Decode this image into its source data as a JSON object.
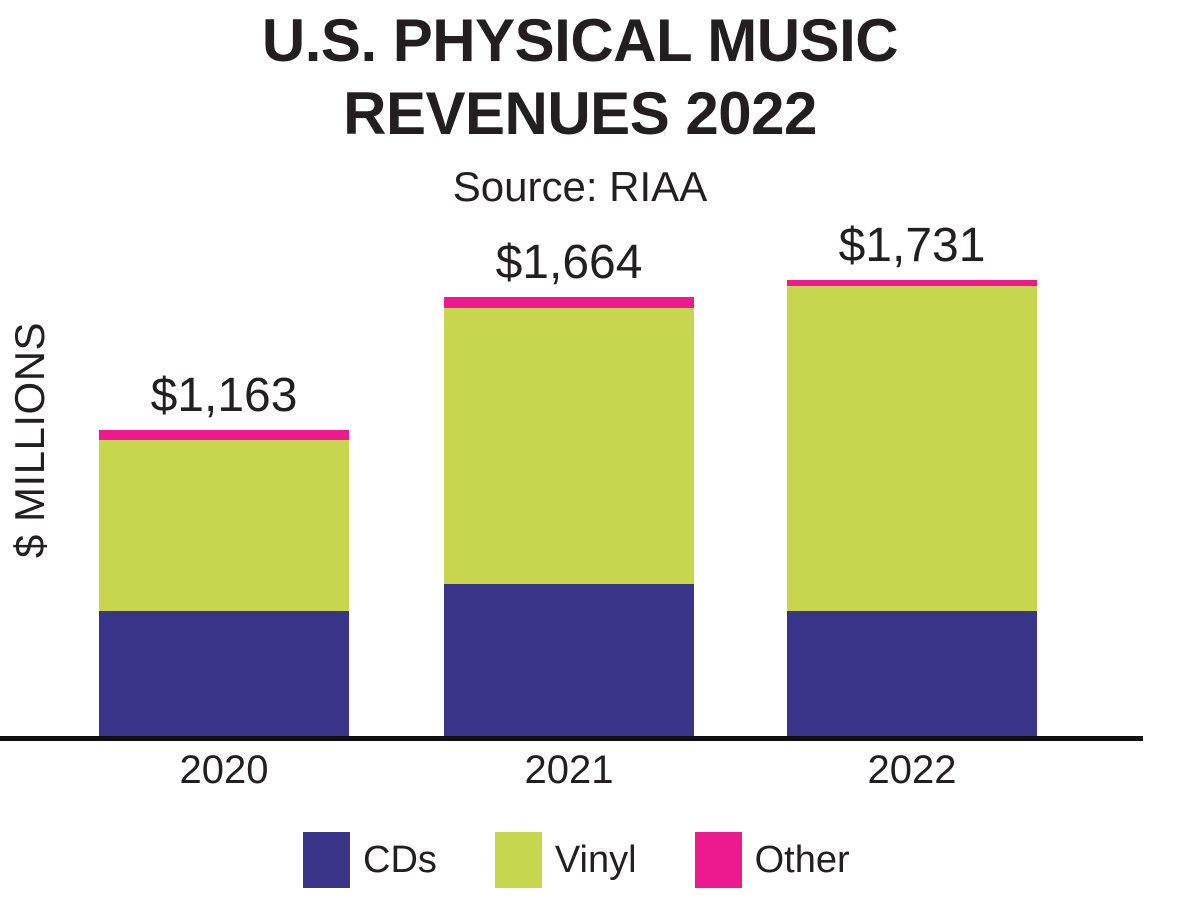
{
  "header": {
    "title_line1": "U.S. PHYSICAL MUSIC",
    "title_line2": "REVENUES 2022",
    "subtitle": "Source: RIAA"
  },
  "axes": {
    "y_label": "$ MILLIONS"
  },
  "chart_data": {
    "type": "bar",
    "stacked": true,
    "title": "U.S. PHYSICAL MUSIC REVENUES 2022",
    "subtitle": "Source: RIAA",
    "ylabel": "$ MILLIONS",
    "xlabel": "",
    "unit": "USD millions",
    "categories": [
      "2020",
      "2021",
      "2022"
    ],
    "series": [
      {
        "name": "CDs",
        "color": "#3a3589",
        "values": [
          483,
          584,
          483
        ]
      },
      {
        "name": "Vinyl",
        "color": "#c6d64f",
        "values": [
          644,
          1040,
          1225
        ]
      },
      {
        "name": "Other",
        "color": "#ed1a8d",
        "values": [
          36,
          40,
          23
        ]
      }
    ],
    "totals": [
      1163,
      1664,
      1731
    ],
    "total_labels": [
      "$1,163",
      "$1,664",
      "$1,731"
    ],
    "legend_position": "bottom",
    "grid": false,
    "axis_color": "#111111",
    "text_color": "#231f20",
    "background": "#ffffff"
  }
}
